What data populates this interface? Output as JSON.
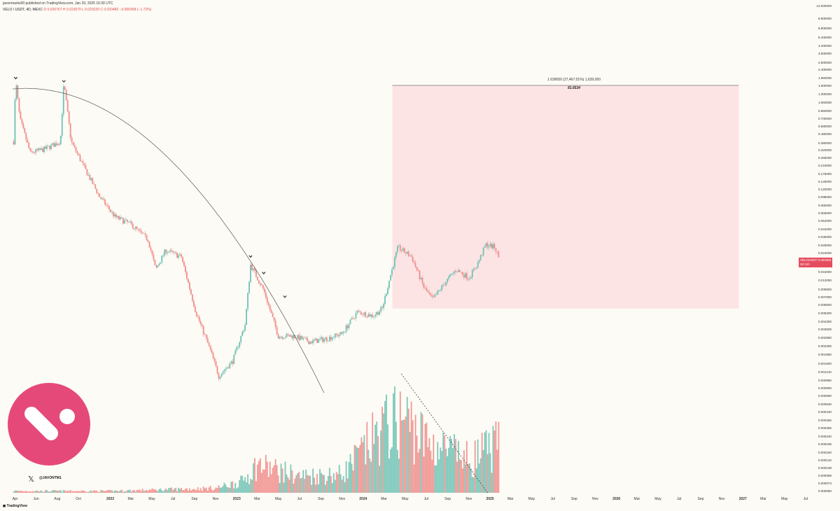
{
  "header": {
    "publisher": "javonmarks00 published on TradingView.com, Jan 29, 2025 16:30 UTC",
    "symbol": "VELO / USDT, 4D, MEXC",
    "ohlc": "O 0.020767  H 0.023070  L 0.020220  C 0.020483  −0.000358 (−1.72%)"
  },
  "price_tag": {
    "symbol": "VELOUSDT",
    "value": "0.020483",
    "sub": "3d 21h"
  },
  "measure": {
    "label": "1.639050 (27,467.01%) 1,639,050",
    "value": "81.6534"
  },
  "watermark": {
    "handle": "@JAVONTM1",
    "x_icon": "x-logo-icon",
    "tv": "TradingView"
  },
  "colors": {
    "up": "#6fc2b5",
    "down": "#f08d8b",
    "zone": "#fde4e4",
    "logo": "#e5497a",
    "background": "#fdfbf5"
  },
  "chart_data": {
    "type": "candlestick",
    "symbol": "VELO / USDT",
    "interval": "4D",
    "exchange": "MEXC",
    "y_scale": "log",
    "x_ticks": [
      "Apr",
      "Jun",
      "Aug",
      "Oct",
      "2022",
      "Mar",
      "May",
      "Jul",
      "Sep",
      "Nov",
      "2023",
      "Mar",
      "May",
      "Jul",
      "Sep",
      "Nov",
      "2024",
      "Mar",
      "May",
      "Jul",
      "Sep",
      "Nov",
      "2025",
      "Mar",
      "May",
      "Jul",
      "Sep",
      "Nov",
      "2026",
      "Mar",
      "May",
      "Jul",
      "Sep",
      "Nov",
      "2027",
      "Mar",
      "May",
      "Jul"
    ],
    "y_ticks": [
      "12.000000",
      "8.800000",
      "6.800000",
      "5.400000",
      "4.400000",
      "3.600000",
      "2.900000",
      "2.400000",
      "1.950000",
      "1.600000",
      "1.300000",
      "1.060000",
      "0.860000",
      "0.700000",
      "0.580000",
      "0.480000",
      "0.380000",
      "0.320000",
      "0.265000",
      "0.215000",
      "0.175000",
      "0.145000",
      "0.120000",
      "0.098000",
      "0.080000",
      "0.066000",
      "0.054000",
      "0.044000",
      "0.036000",
      "0.029000",
      "0.024000",
      "0.019000",
      "0.015000",
      "0.012000",
      "0.009600",
      "0.007900",
      "0.006500",
      "0.005300",
      "0.004300",
      "0.003500",
      "0.002850",
      "0.002300",
      "0.001860",
      "0.001500",
      "0.001210",
      "0.000980",
      "0.000800",
      "0.000660",
      "0.000540",
      "0.000440",
      "0.000360",
      "0.000295",
      "0.000240",
      "0.000195",
      "0.000160",
      "0.000132",
      "0.000108",
      "0.000089",
      "0.000073",
      "0.000060"
    ],
    "price_path": [
      [
        "2021-03-28",
        0.4
      ],
      [
        "2021-04-03",
        1.86
      ],
      [
        "2021-04-15",
        0.7
      ],
      [
        "2021-05-15",
        0.3
      ],
      [
        "2021-06-25",
        0.33
      ],
      [
        "2021-08-10",
        0.4
      ],
      [
        "2021-08-20",
        1.75
      ],
      [
        "2021-09-10",
        0.4
      ],
      [
        "2021-10-20",
        0.2
      ],
      [
        "2021-12-01",
        0.1
      ],
      [
        "2022-01-15",
        0.06
      ],
      [
        "2022-03-01",
        0.05
      ],
      [
        "2022-04-20",
        0.034
      ],
      [
        "2022-05-12",
        0.016
      ],
      [
        "2022-06-10",
        0.026
      ],
      [
        "2022-07-25",
        0.022
      ],
      [
        "2022-09-05",
        0.0055
      ],
      [
        "2022-10-15",
        0.0022
      ],
      [
        "2022-11-10",
        0.0011
      ],
      [
        "2022-12-20",
        0.0016
      ],
      [
        "2023-01-25",
        0.004
      ],
      [
        "2023-02-10",
        0.018
      ],
      [
        "2023-03-20",
        0.0095
      ],
      [
        "2023-05-01",
        0.003
      ],
      [
        "2023-06-15",
        0.003
      ],
      [
        "2023-08-01",
        0.0026
      ],
      [
        "2023-09-15",
        0.0028
      ],
      [
        "2023-11-01",
        0.0032
      ],
      [
        "2023-12-15",
        0.0055
      ],
      [
        "2024-01-30",
        0.005
      ],
      [
        "2024-02-25",
        0.006
      ],
      [
        "2024-03-20",
        0.014
      ],
      [
        "2024-04-10",
        0.028
      ],
      [
        "2024-05-20",
        0.022
      ],
      [
        "2024-06-25",
        0.01
      ],
      [
        "2024-07-20",
        0.0075
      ],
      [
        "2024-08-20",
        0.011
      ],
      [
        "2024-09-25",
        0.016
      ],
      [
        "2024-11-01",
        0.013
      ],
      [
        "2024-11-25",
        0.018
      ],
      [
        "2024-12-20",
        0.03
      ],
      [
        "2025-01-15",
        0.028
      ],
      [
        "2025-01-29",
        0.020483
      ]
    ],
    "volume_profile": [
      [
        "2022-01-01",
        0.02
      ],
      [
        "2022-11-01",
        0.05
      ],
      [
        "2023-01-15",
        0.12
      ],
      [
        "2023-03-01",
        0.3
      ],
      [
        "2023-07-01",
        0.18
      ],
      [
        "2023-11-01",
        0.2
      ],
      [
        "2024-01-01",
        0.45
      ],
      [
        "2024-03-01",
        0.7
      ],
      [
        "2024-05-01",
        0.8
      ],
      [
        "2024-07-01",
        0.55
      ],
      [
        "2024-09-01",
        0.45
      ],
      [
        "2024-11-01",
        0.35
      ],
      [
        "2025-01-15",
        0.5
      ]
    ],
    "annotations": {
      "measure_box": {
        "start": "2024-03-25",
        "end": "2026-12-20",
        "low": 0.006,
        "high": 1.63905,
        "label": "1.639050 (27,467.01%) 1,639,050",
        "value": "81.6534"
      },
      "arc_start": [
        "2021-03-25",
        1.5
      ],
      "arc_end": [
        "2023-09-10",
        0.00072
      ],
      "touch_points": [
        [
          "2021-04-03",
          1.95
        ],
        [
          "2021-08-20",
          1.8
        ],
        [
          "2023-02-10",
          0.022
        ],
        [
          "2023-03-20",
          0.0145
        ],
        [
          "2023-05-20",
          0.008
        ]
      ],
      "volume_trend": [
        [
          "2024-04-20",
          1.0
        ],
        [
          "2024-12-25",
          0.0
        ]
      ]
    }
  }
}
